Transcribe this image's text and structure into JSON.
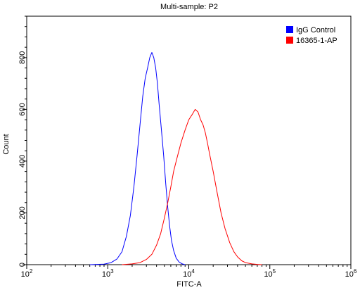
{
  "chart_data": {
    "type": "line",
    "title": "Multi-sample: P2",
    "xlabel": "FITC-A",
    "ylabel": "Count",
    "x_scale": "log",
    "xlim": [
      100,
      1000000
    ],
    "ylim": [
      0,
      960
    ],
    "x_ticks": [
      {
        "value": 100,
        "base": "10",
        "exp": "2"
      },
      {
        "value": 1000,
        "base": "10",
        "exp": "3"
      },
      {
        "value": 10000,
        "base": "10",
        "exp": "4"
      },
      {
        "value": 100000,
        "base": "10",
        "exp": "5"
      },
      {
        "value": 1000000,
        "base": "10",
        "exp": "6"
      }
    ],
    "y_ticks": [
      {
        "value": 0,
        "label": "0"
      },
      {
        "value": 200,
        "label": "200"
      },
      {
        "value": 400,
        "label": "400"
      },
      {
        "value": 600,
        "label": "600"
      },
      {
        "value": 800,
        "label": "800"
      }
    ],
    "grid": false,
    "legend_position": "top-right",
    "series": [
      {
        "name": "IgG Control",
        "color": "#0000ff",
        "x": [
          600,
          900,
          1100,
          1300,
          1500,
          1700,
          1900,
          2100,
          2300,
          2500,
          2700,
          2900,
          3100,
          3300,
          3500,
          3700,
          3900,
          4100,
          4300,
          4600,
          4900,
          5200,
          5500,
          5800,
          6100,
          6500,
          7000,
          7600,
          8300,
          9000
        ],
        "y": [
          0,
          2,
          8,
          22,
          50,
          110,
          190,
          300,
          420,
          540,
          650,
          720,
          760,
          800,
          820,
          800,
          760,
          700,
          620,
          520,
          420,
          310,
          220,
          150,
          95,
          55,
          25,
          10,
          3,
          0
        ]
      },
      {
        "name": "16365-1-AP",
        "color": "#ff0000",
        "x": [
          1500,
          2000,
          2500,
          3000,
          3500,
          4000,
          4500,
          5000,
          5500,
          6000,
          6500,
          7000,
          8000,
          9000,
          10000,
          11000,
          12000,
          13000,
          14000,
          15000,
          16000,
          17000,
          18000,
          20000,
          22000,
          25000,
          28000,
          32000,
          36000,
          40000,
          45000,
          50000,
          60000,
          70000,
          80000
        ],
        "y": [
          0,
          3,
          8,
          20,
          40,
          75,
          120,
          180,
          240,
          300,
          360,
          400,
          470,
          520,
          560,
          580,
          600,
          590,
          560,
          540,
          510,
          470,
          430,
          360,
          290,
          200,
          140,
          85,
          50,
          30,
          15,
          8,
          3,
          1,
          0
        ]
      }
    ]
  }
}
